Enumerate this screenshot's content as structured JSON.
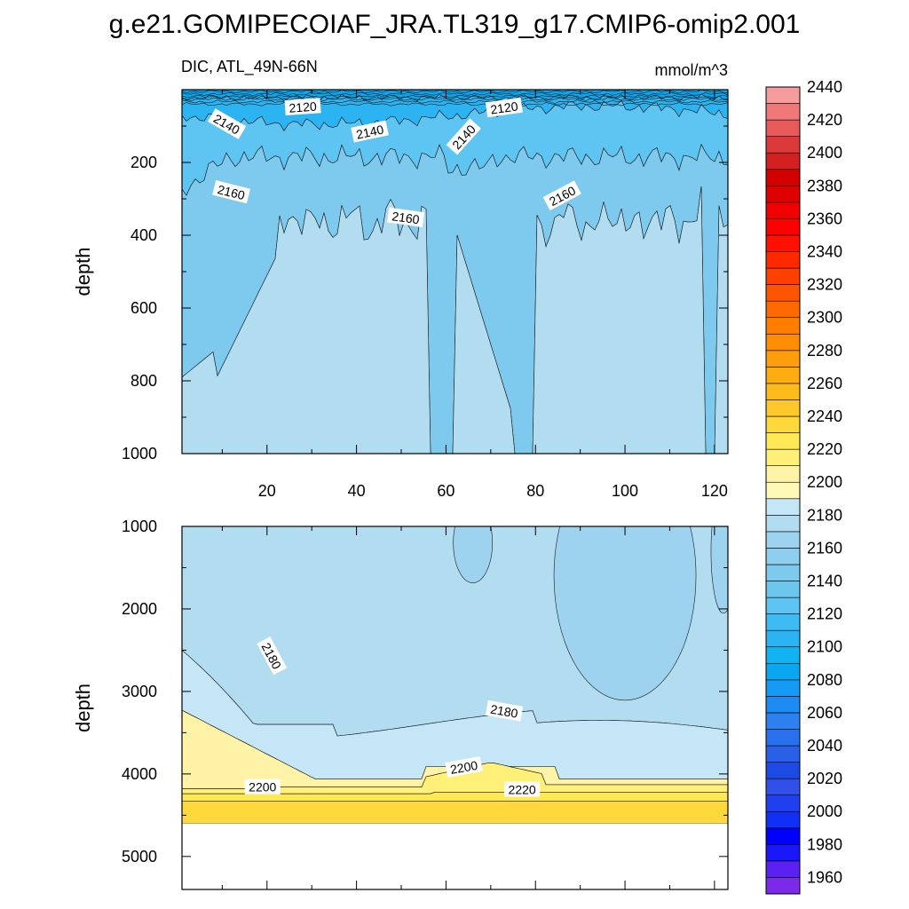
{
  "figure": {
    "title": "g.e21.GOMIPECOIAF_JRA.TL319_g17.CMIP6-omip2.001",
    "left_string": "DIC, ATL_49N-66N",
    "right_string": "mmol/m^3"
  },
  "chart_data": [
    {
      "type": "contour",
      "panel": "upper",
      "ylabel": "depth",
      "xlim": [
        1,
        123
      ],
      "ylim": [
        0,
        1000
      ],
      "y_reversed": true,
      "xticks": [
        20,
        40,
        60,
        80,
        100,
        120
      ],
      "yticks": [
        200,
        400,
        600,
        800,
        1000
      ],
      "fill_levels": [
        {
          "level": 2110,
          "color": "#0aa7f0"
        },
        {
          "level": 2120,
          "color": "#2cb4f2"
        },
        {
          "level": 2140,
          "color": "#5ec4f1"
        },
        {
          "level": 2160,
          "color": "#7ec9ee"
        },
        {
          "level": 2170,
          "color": "#9dd3ee"
        },
        {
          "level": 2180,
          "color": "#b2dcf0"
        }
      ],
      "contour_labels": [
        {
          "text": "2120",
          "x": 28,
          "y": 48,
          "angle": -4
        },
        {
          "text": "2120",
          "x": 73,
          "y": 50,
          "angle": -8
        },
        {
          "text": "2140",
          "x": 11,
          "y": 95,
          "angle": 30
        },
        {
          "text": "2140",
          "x": 43,
          "y": 116,
          "angle": -12
        },
        {
          "text": "2140",
          "x": 64,
          "y": 130,
          "angle": -48
        },
        {
          "text": "2160",
          "x": 12,
          "y": 282,
          "angle": 14
        },
        {
          "text": "2160",
          "x": 51,
          "y": 352,
          "angle": 8
        },
        {
          "text": "2160",
          "x": 86,
          "y": 292,
          "angle": -28
        }
      ]
    },
    {
      "type": "contour",
      "panel": "lower",
      "ylabel": "depth",
      "xlim": [
        1,
        123
      ],
      "ylim": [
        1000,
        5400
      ],
      "y_reversed": true,
      "data_bottom_depth": 4600,
      "yticks": [
        1000,
        2000,
        3000,
        4000,
        5000
      ],
      "fill_levels": [
        {
          "level": 2170,
          "color": "#9dd3ee"
        },
        {
          "level": 2180,
          "color": "#b2dcf0"
        },
        {
          "level": 2190,
          "color": "#c5e6f6"
        },
        {
          "level": 2200,
          "color": "#fff3a7"
        },
        {
          "level": 2210,
          "color": "#fff07a"
        },
        {
          "level": 2220,
          "color": "#ffe955"
        },
        {
          "level": 2230,
          "color": "#ffd93b"
        }
      ],
      "contour_labels": [
        {
          "text": "2180",
          "x": 21,
          "y": 2570,
          "angle": 62
        },
        {
          "text": "2180",
          "x": 73,
          "y": 3240,
          "angle": 10
        },
        {
          "text": "2200",
          "x": 19,
          "y": 4160,
          "angle": 0
        },
        {
          "text": "2200",
          "x": 64,
          "y": 3920,
          "angle": -10
        },
        {
          "text": "2220",
          "x": 77,
          "y": 4190,
          "angle": 0
        }
      ]
    }
  ],
  "colorbar": {
    "levels": [
      1960,
      1970,
      1980,
      1990,
      2000,
      2010,
      2020,
      2030,
      2040,
      2050,
      2060,
      2070,
      2080,
      2090,
      2100,
      2110,
      2120,
      2130,
      2140,
      2150,
      2160,
      2170,
      2180,
      2190,
      2200,
      2210,
      2220,
      2230,
      2240,
      2250,
      2260,
      2270,
      2280,
      2290,
      2300,
      2310,
      2320,
      2330,
      2340,
      2350,
      2360,
      2370,
      2380,
      2390,
      2400,
      2410,
      2420,
      2430,
      2440,
      2450
    ],
    "labels": [
      "1960",
      "1980",
      "2000",
      "2020",
      "2040",
      "2060",
      "2080",
      "2100",
      "2120",
      "2140",
      "2160",
      "2180",
      "2200",
      "2220",
      "2240",
      "2260",
      "2280",
      "2300",
      "2320",
      "2340",
      "2360",
      "2380",
      "2400",
      "2420",
      "2440"
    ],
    "colors": [
      "#7d2ae8",
      "#5a22f0",
      "#1a18f8",
      "#0000ff",
      "#1030f6",
      "#2040f0",
      "#3150e8",
      "#1c4ae5",
      "#2a60e8",
      "#2870ec",
      "#2e7ff0",
      "#1c8cf2",
      "#159af5",
      "#0aa7f0",
      "#10b4f2",
      "#2cb4f2",
      "#3dbcf4",
      "#5ec4f1",
      "#6dc6ee",
      "#7ec9ee",
      "#8fcfee",
      "#9dd3ee",
      "#b2dcf0",
      "#c5e6f6",
      "#fff9b8",
      "#fff3a7",
      "#fff07a",
      "#ffe955",
      "#ffd93b",
      "#ffc82a",
      "#ffbb1a",
      "#ffac11",
      "#ff9e0a",
      "#ff8e05",
      "#ff7e00",
      "#ff6a00",
      "#ff5500",
      "#ff4000",
      "#ff2800",
      "#ff1000",
      "#ff0000",
      "#f00000",
      "#e00000",
      "#d40000",
      "#d32020",
      "#dc3a3a",
      "#e85a5a",
      "#f07878",
      "#f59c9c"
    ]
  }
}
